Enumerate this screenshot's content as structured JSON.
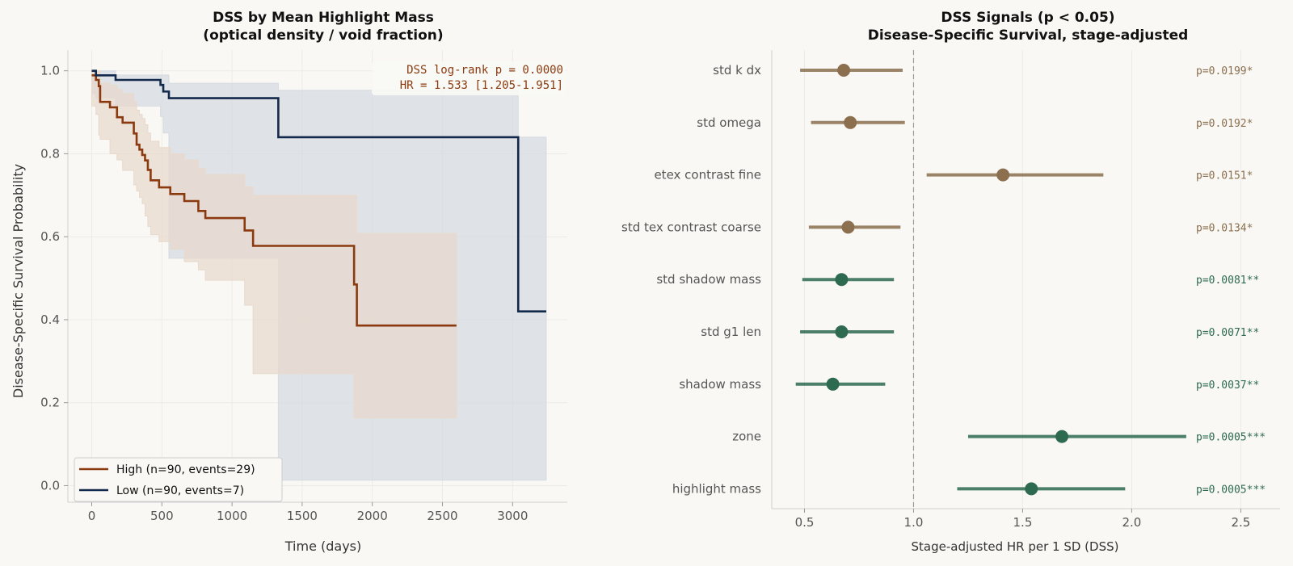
{
  "colors": {
    "background": "#f9f8f5",
    "high": "#8b3a0f",
    "high_band": "#e8d9cc",
    "low": "#13294b",
    "low_band": "#d6dbe0",
    "brown_sig": "#8b6f4e",
    "green_sig": "#2e6a50",
    "grid": "#ecebe6"
  },
  "chart_data": [
    {
      "type": "line",
      "title": "DSS by Mean Highlight Mass",
      "subtitle": "(optical density / void fraction)",
      "xlabel": "Time (days)",
      "ylabel": "Disease-Specific Survival Probability",
      "xlim": [
        -170,
        3390
      ],
      "ylim": [
        -0.04,
        1.05
      ],
      "xticks": [
        0,
        500,
        1000,
        1500,
        2000,
        2500,
        3000
      ],
      "xtick_labels": [
        "0",
        "500",
        "1000",
        "1500",
        "2000",
        "2500",
        "3000"
      ],
      "yticks": [
        0.0,
        0.2,
        0.4,
        0.6,
        0.8,
        1.0
      ],
      "ytick_labels": [
        "0.0",
        "0.2",
        "0.4",
        "0.6",
        "0.8",
        "1.0"
      ],
      "grid": true,
      "legend_position": "bottom-left",
      "annotation": [
        "DSS log-rank p = 0.0000",
        "HR = 1.533 [1.205-1.951]"
      ],
      "series": [
        {
          "name": "High (n=90, events=29)",
          "color": "#8b3a0f",
          "band_color": "#e8d9cc",
          "x": [
            0,
            30,
            50,
            60,
            130,
            180,
            220,
            300,
            320,
            340,
            360,
            380,
            400,
            420,
            480,
            560,
            660,
            760,
            810,
            1090,
            1150,
            1870,
            1890,
            2600
          ],
          "y": [
            0.989,
            0.978,
            0.963,
            0.925,
            0.912,
            0.888,
            0.875,
            0.849,
            0.822,
            0.81,
            0.797,
            0.784,
            0.761,
            0.736,
            0.719,
            0.703,
            0.686,
            0.662,
            0.645,
            0.615,
            0.578,
            0.485,
            0.386,
            0.386
          ],
          "band_x": [
            0,
            30,
            50,
            60,
            130,
            180,
            220,
            300,
            320,
            340,
            360,
            380,
            400,
            420,
            480,
            560,
            660,
            760,
            810,
            1090,
            1150,
            1870,
            1890,
            2600
          ],
          "band_lower": [
            0.925,
            0.915,
            0.895,
            0.845,
            0.835,
            0.8,
            0.785,
            0.76,
            0.725,
            0.71,
            0.695,
            0.68,
            0.65,
            0.625,
            0.605,
            0.588,
            0.57,
            0.54,
            0.52,
            0.495,
            0.435,
            0.27,
            0.163,
            0.163
          ],
          "band_upper": [
            1.0,
            1.0,
            1.0,
            0.97,
            0.965,
            0.955,
            0.945,
            0.925,
            0.905,
            0.895,
            0.885,
            0.87,
            0.85,
            0.83,
            0.815,
            0.8,
            0.785,
            0.765,
            0.75,
            0.72,
            0.7,
            0.7,
            0.608,
            0.608
          ]
        },
        {
          "name": "Low (n=90, events=7)",
          "color": "#13294b",
          "band_color": "#d6dbe0",
          "x": [
            0,
            30,
            170,
            490,
            510,
            550,
            1330,
            3040,
            3240
          ],
          "y": [
            1.0,
            0.989,
            0.978,
            0.966,
            0.95,
            0.934,
            0.84,
            0.42,
            0.42
          ],
          "band_x": [
            0,
            30,
            170,
            490,
            510,
            550,
            1330,
            3040,
            3240
          ],
          "band_lower": [
            0.965,
            0.945,
            0.935,
            0.915,
            0.89,
            0.85,
            0.548,
            0.013,
            0.013
          ],
          "band_upper": [
            1.0,
            1.0,
            0.99,
            0.99,
            0.99,
            0.97,
            0.953,
            0.84,
            0.84
          ]
        }
      ]
    },
    {
      "type": "scatter",
      "title": "DSS Signals (p < 0.05)",
      "subtitle": "Disease-Specific Survival, stage-adjusted",
      "xlabel": "Stage-adjusted HR per 1 SD (DSS)",
      "xlim": [
        0.35,
        2.68
      ],
      "xticks": [
        0.5,
        1.0,
        1.5,
        2.0,
        2.5
      ],
      "xtick_labels": [
        "0.5",
        "1.0",
        "1.5",
        "2.0",
        "2.5"
      ],
      "reference_line": 1.0,
      "grid": true,
      "categories": [
        "std k dx",
        "std omega",
        "etex contrast fine",
        "std tex contrast coarse",
        "std shadow mass",
        "std g1 len",
        "shadow mass",
        "zone",
        "highlight mass"
      ],
      "hr": [
        0.68,
        0.71,
        1.41,
        0.7,
        0.67,
        0.67,
        0.63,
        1.68,
        1.54
      ],
      "ci_lower": [
        0.48,
        0.53,
        1.06,
        0.52,
        0.49,
        0.48,
        0.46,
        1.25,
        1.2
      ],
      "ci_upper": [
        0.95,
        0.96,
        1.87,
        0.94,
        0.91,
        0.91,
        0.87,
        2.25,
        1.97
      ],
      "p_labels": [
        "p=0.0199*",
        "p=0.0192*",
        "p=0.0151*",
        "p=0.0134*",
        "p=0.0081**",
        "p=0.0071**",
        "p=0.0037**",
        "p=0.0005***",
        "p=0.0005***"
      ],
      "group_colors": [
        "#8b6f4e",
        "#8b6f4e",
        "#8b6f4e",
        "#8b6f4e",
        "#2e6a50",
        "#2e6a50",
        "#2e6a50",
        "#2e6a50",
        "#2e6a50"
      ]
    }
  ]
}
